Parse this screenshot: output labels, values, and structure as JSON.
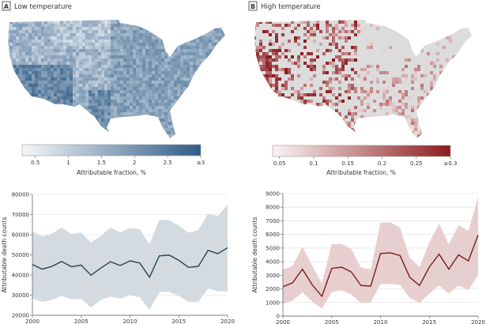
{
  "panels": [
    {
      "letter": "A",
      "title": "Low temperature"
    },
    {
      "letter": "B",
      "title": "High temperature"
    }
  ],
  "colors": {
    "low_scale": [
      "#f5f7fa",
      "#2f5c86"
    ],
    "high_scale": [
      "#fbf4f4",
      "#8c1c1f"
    ],
    "low_line": "#2b4252",
    "low_band": "#d3dbe0",
    "high_line": "#7a1a1e",
    "high_band": "#e8cfcf",
    "no_data_gray": "#dcdcdc"
  },
  "chart_data": [
    {
      "type": "heatmap",
      "subtype": "choropleth map",
      "panel": "A",
      "colorbar": {
        "label": "Attributable fraction, %",
        "ticks": [
          "0.5",
          "1",
          "1.5",
          "2",
          "2.5",
          "≥3"
        ],
        "range": [
          0.3,
          3
        ]
      }
    },
    {
      "type": "heatmap",
      "subtype": "choropleth map",
      "panel": "B",
      "colorbar": {
        "label": "Attributable fraction, %",
        "ticks": [
          "0.05",
          "0.1",
          "0.15",
          "0.2",
          "0.25",
          "≥0.3"
        ],
        "range": [
          0.04,
          0.3
        ]
      }
    },
    {
      "type": "line",
      "panel": "A",
      "ylabel": "Attributable death counts",
      "xlim": [
        2000,
        2020
      ],
      "ylim": [
        20000,
        80000
      ],
      "xticks": [
        "2000",
        "2005",
        "2010",
        "2015",
        "2020"
      ],
      "yticks": [
        "20000",
        "30000",
        "40000",
        "50000",
        "60000",
        "70000",
        "80000"
      ],
      "grid": "horizontal",
      "x": [
        2000,
        2001,
        2002,
        2003,
        2004,
        2005,
        2006,
        2007,
        2008,
        2009,
        2010,
        2011,
        2012,
        2013,
        2014,
        2015,
        2016,
        2017,
        2018,
        2019,
        2020
      ],
      "values": [
        45200,
        42900,
        44300,
        46700,
        44100,
        44900,
        39900,
        43400,
        46600,
        44700,
        47000,
        46000,
        38900,
        49500,
        49900,
        47300,
        43800,
        44300,
        52200,
        50600,
        53500
      ],
      "upper": [
        61500,
        59200,
        60500,
        63600,
        60300,
        61100,
        56100,
        59300,
        63600,
        61200,
        63300,
        62800,
        55200,
        67300,
        67300,
        64500,
        61000,
        62300,
        70400,
        69200,
        75000
      ],
      "lower": [
        28400,
        26600,
        27600,
        29600,
        27900,
        28200,
        23800,
        27600,
        29300,
        28300,
        30000,
        29000,
        22700,
        31400,
        31600,
        29600,
        26700,
        26500,
        33400,
        31900,
        31800
      ]
    },
    {
      "type": "line",
      "panel": "B",
      "ylabel": "Attributable death counts",
      "xlim": [
        2000,
        2020
      ],
      "ylim": [
        0,
        9000
      ],
      "xticks": [
        "2000",
        "2005",
        "2010",
        "2015",
        "2020"
      ],
      "yticks": [
        "0",
        "1000",
        "2000",
        "3000",
        "4000",
        "5000",
        "6000",
        "7000",
        "8000",
        "9000"
      ],
      "grid": "horizontal",
      "x": [
        2000,
        2001,
        2002,
        2003,
        2004,
        2005,
        2006,
        2007,
        2008,
        2009,
        2010,
        2011,
        2012,
        2013,
        2014,
        2015,
        2016,
        2017,
        2018,
        2019,
        2020
      ],
      "values": [
        2150,
        2450,
        3450,
        2300,
        1450,
        3500,
        3600,
        3250,
        2250,
        2200,
        4600,
        4650,
        4450,
        2850,
        2250,
        3600,
        4550,
        3450,
        4500,
        4050,
        5950
      ],
      "upper": [
        3400,
        3700,
        5100,
        3700,
        2400,
        5300,
        5300,
        4950,
        3550,
        3450,
        6850,
        6900,
        6500,
        4300,
        3600,
        5400,
        6800,
        5250,
        6700,
        6250,
        8750
      ],
      "lower": [
        900,
        1150,
        1750,
        1050,
        550,
        1750,
        1900,
        1600,
        950,
        1000,
        2350,
        2350,
        2300,
        1350,
        950,
        1650,
        2250,
        1650,
        2250,
        1900,
        3000
      ]
    }
  ]
}
